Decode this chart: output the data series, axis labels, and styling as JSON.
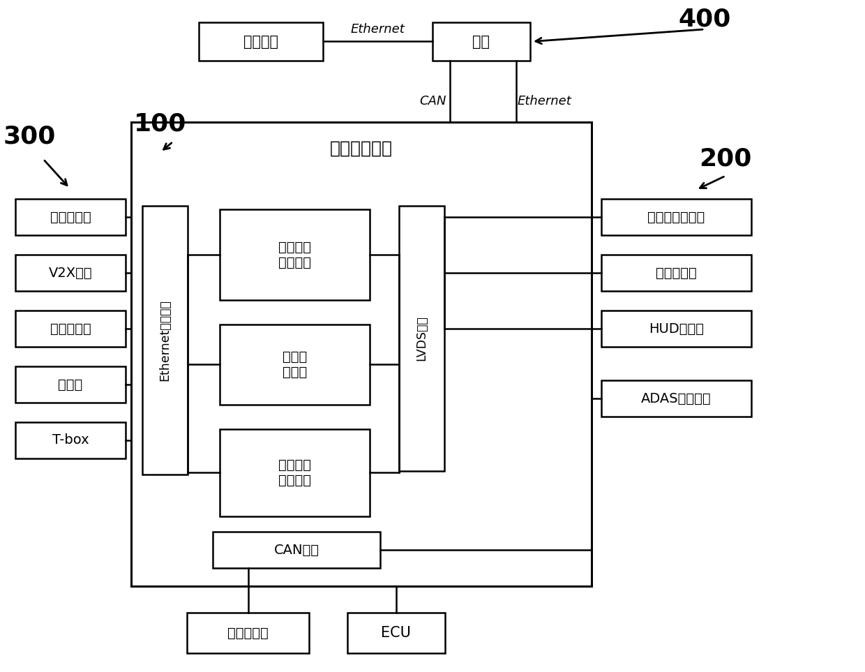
{
  "bg_color": "#ffffff",
  "box_edge_color": "#000000",
  "box_face_color": "#ffffff",
  "labels": {
    "diag_port": "诊断接口",
    "gateway": "网关",
    "center_ctrl": "中心域控制器",
    "eth_comm": "Ethernet通信接口",
    "input_signal": "输入信号\n处理单元",
    "central_proc": "中央处\n理单元",
    "output_drive": "输出驱动\n电路单元",
    "can_port": "CAN接口",
    "lvds_port": "LVDS接口",
    "surround_cam": "环视摄像头",
    "v2x": "V2X模块",
    "dashcam": "行车记录仪",
    "night_vision": "夜视仪",
    "tbox": "T-box",
    "cluster": "组合仪表显示屏",
    "center_display": "中控显示屏",
    "hud": "HUD显示屏",
    "adas": "ADAS域控制器",
    "power_amp": "功率放大器",
    "ecu": "ECU",
    "label_300": "300",
    "label_100": "100",
    "label_400": "400",
    "label_200": "200",
    "ethernet_top": "Ethernet",
    "can_top": "CAN",
    "ethernet_right": "Ethernet"
  },
  "figsize": [
    12.4,
    9.63
  ],
  "dpi": 100
}
